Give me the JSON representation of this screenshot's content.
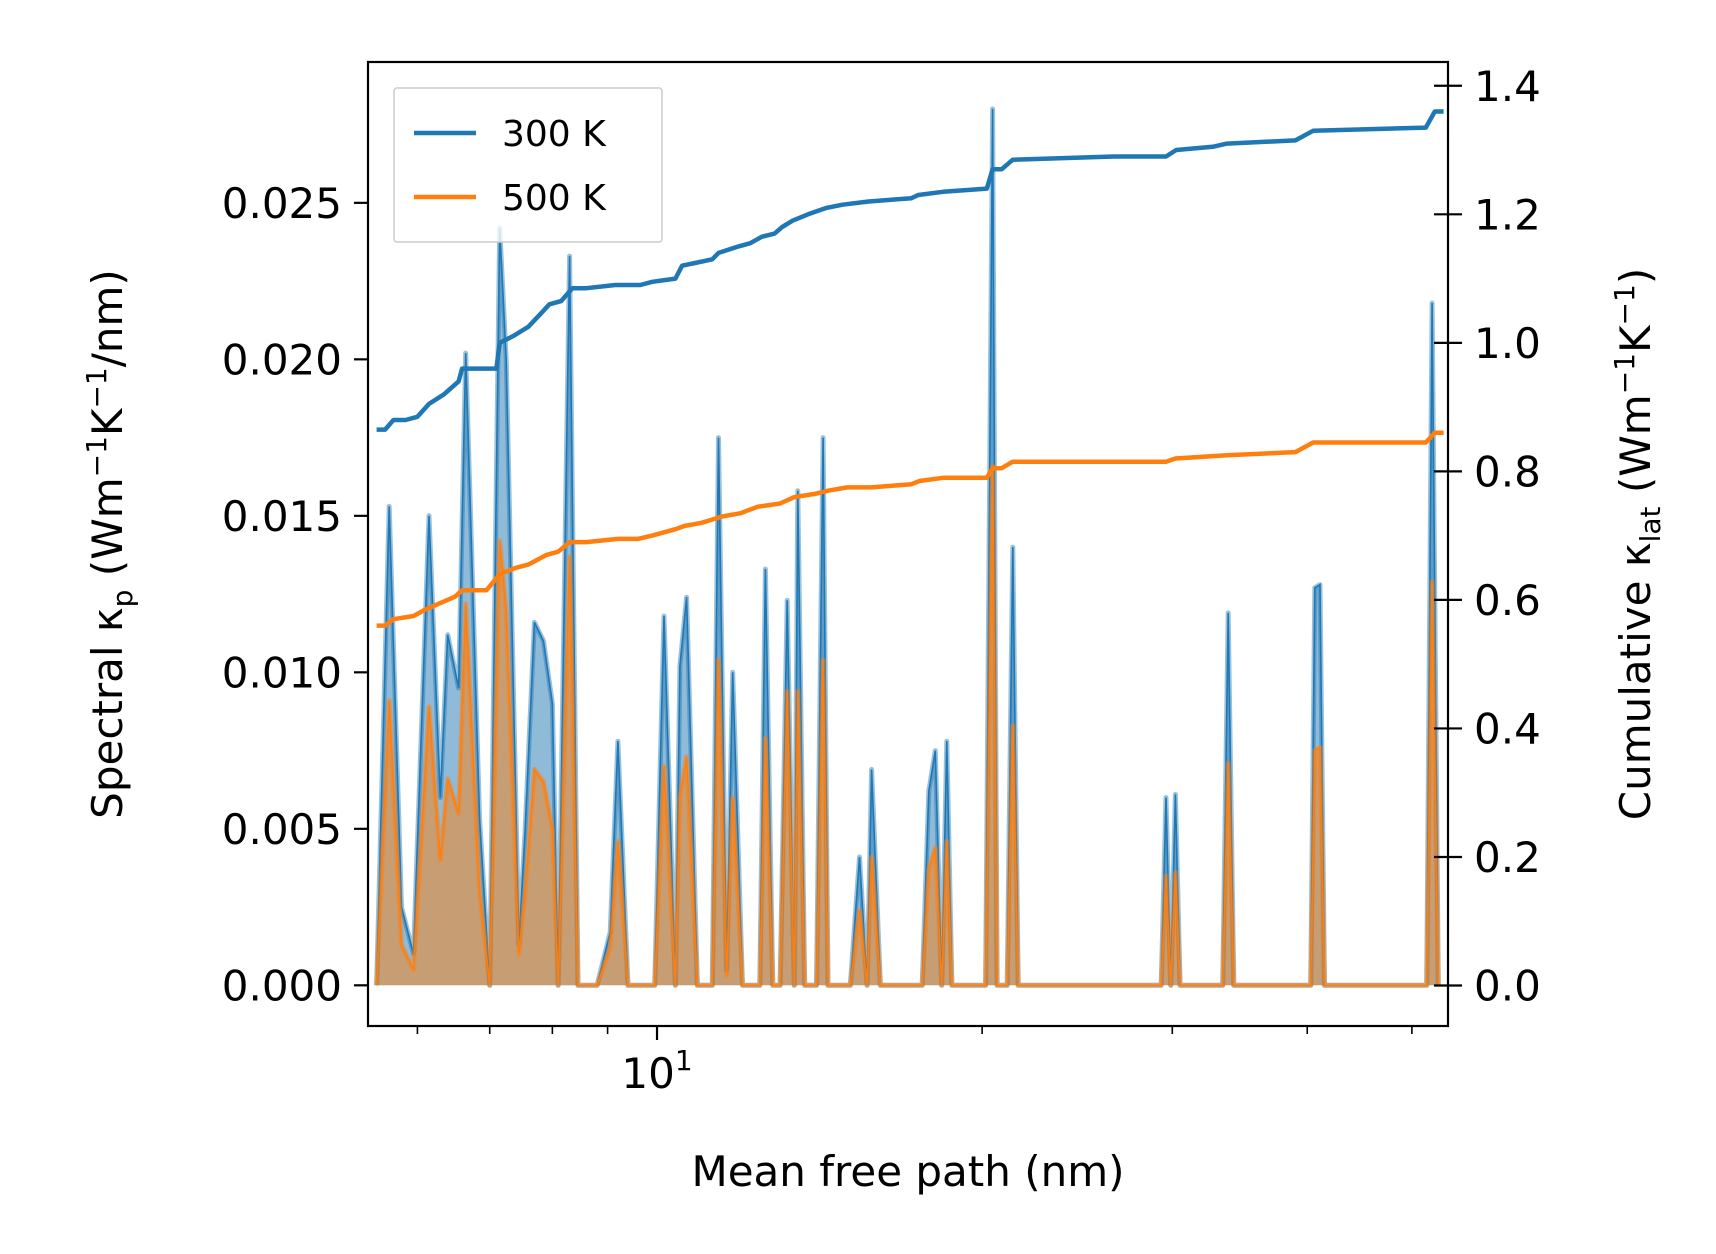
{
  "chart_data": {
    "type": "line",
    "title": "",
    "xlabel": "Mean free path (nm)",
    "xscale": "log",
    "xlim": [
      5.4,
      54
    ],
    "x_ticks": [
      {
        "value": 10,
        "base": "10",
        "exp": "1"
      }
    ],
    "ylabel_left": {
      "prefix": "Spectral κ",
      "sub": "p",
      "units_open": " (Wm",
      "sup1": "−1",
      "mid": "K",
      "sup2": "−1",
      "units_close": "/nm)"
    },
    "ylabel_right": {
      "prefix": "Cumulative κ",
      "sub": "lat",
      "units_open": " (Wm",
      "sup1": "−1",
      "mid": "K",
      "sup2": "−1",
      "units_close": ")"
    },
    "ylim_left": [
      -0.0013,
      0.0295
    ],
    "ylim_right": [
      -0.063,
      1.437
    ],
    "yticks_left": [
      0.0,
      0.005,
      0.01,
      0.015,
      0.02,
      0.025
    ],
    "yticks_left_labels": [
      "0.000",
      "0.005",
      "0.010",
      "0.015",
      "0.020",
      "0.025"
    ],
    "yticks_right": [
      0.0,
      0.2,
      0.4,
      0.6,
      0.8,
      1.0,
      1.2,
      1.4
    ],
    "yticks_right_labels": [
      "0.0",
      "0.2",
      "0.4",
      "0.6",
      "0.8",
      "1.0",
      "1.2",
      "1.4"
    ],
    "legend": {
      "position": "upper-left",
      "entries": [
        {
          "label": "300 K",
          "color": "#1f77b4"
        },
        {
          "label": "500 K",
          "color": "#ff7f0e"
        }
      ]
    },
    "series": [
      {
        "name": "300 K",
        "color": "#1f77b4",
        "spectral": [
          [
            5.5,
            0
          ],
          [
            5.65,
            0.0153
          ],
          [
            5.8,
            0.0025
          ],
          [
            5.95,
            0.001
          ],
          [
            6.15,
            0.015
          ],
          [
            6.3,
            0.006
          ],
          [
            6.4,
            0.0112
          ],
          [
            6.55,
            0.0095
          ],
          [
            6.65,
            0.0202
          ],
          [
            6.85,
            0.0053
          ],
          [
            7.0,
            0
          ],
          [
            7.15,
            0.0242
          ],
          [
            7.25,
            0.02
          ],
          [
            7.45,
            0.0013
          ],
          [
            7.55,
            0.005
          ],
          [
            7.7,
            0.0116
          ],
          [
            7.85,
            0.011
          ],
          [
            8.0,
            0.009
          ],
          [
            8.1,
            0
          ],
          [
            8.3,
            0.0233
          ],
          [
            8.45,
            0
          ],
          [
            8.8,
            0
          ],
          [
            9.05,
            0.0017
          ],
          [
            9.2,
            0.0078
          ],
          [
            9.4,
            0
          ],
          [
            9.95,
            0
          ],
          [
            10.15,
            0.0118
          ],
          [
            10.4,
            0
          ],
          [
            10.5,
            0.0102
          ],
          [
            10.65,
            0.0124
          ],
          [
            10.9,
            0
          ],
          [
            11.25,
            0
          ],
          [
            11.4,
            0.0175
          ],
          [
            11.6,
            0.0005
          ],
          [
            11.75,
            0.01
          ],
          [
            12.0,
            0
          ],
          [
            12.45,
            0
          ],
          [
            12.6,
            0.0133
          ],
          [
            12.8,
            0
          ],
          [
            13.0,
            0
          ],
          [
            13.2,
            0.0123
          ],
          [
            13.4,
            0
          ],
          [
            13.5,
            0.0158
          ],
          [
            13.7,
            0
          ],
          [
            14.05,
            0
          ],
          [
            14.25,
            0.0175
          ],
          [
            14.4,
            0
          ],
          [
            15.1,
            0
          ],
          [
            15.4,
            0.0041
          ],
          [
            15.65,
            0
          ],
          [
            15.8,
            0.0069
          ],
          [
            16.1,
            0
          ],
          [
            17.6,
            0
          ],
          [
            17.85,
            0.0062
          ],
          [
            18.1,
            0.0075
          ],
          [
            18.35,
            0
          ],
          [
            18.55,
            0.0078
          ],
          [
            18.75,
            0
          ],
          [
            20.15,
            0
          ],
          [
            20.45,
            0.028
          ],
          [
            20.65,
            0
          ],
          [
            21.1,
            0
          ],
          [
            21.35,
            0.014
          ],
          [
            21.6,
            0
          ],
          [
            29.3,
            0
          ],
          [
            29.6,
            0.006
          ],
          [
            29.9,
            0
          ],
          [
            30.2,
            0.0061
          ],
          [
            30.5,
            0
          ],
          [
            33.4,
            0
          ],
          [
            33.8,
            0.0119
          ],
          [
            34.2,
            0
          ],
          [
            40.3,
            0
          ],
          [
            40.65,
            0.0127
          ],
          [
            41.1,
            0.0128
          ],
          [
            41.5,
            0
          ],
          [
            51.6,
            0
          ],
          [
            52.2,
            0.0218
          ],
          [
            52.9,
            0
          ]
        ],
        "cumulative": [
          [
            5.5,
            0.865
          ],
          [
            5.6,
            0.865
          ],
          [
            5.7,
            0.88
          ],
          [
            5.85,
            0.88
          ],
          [
            6.0,
            0.885
          ],
          [
            6.15,
            0.905
          ],
          [
            6.35,
            0.92
          ],
          [
            6.55,
            0.94
          ],
          [
            6.6,
            0.96
          ],
          [
            6.95,
            0.96
          ],
          [
            7.1,
            0.96
          ],
          [
            7.15,
            1.0
          ],
          [
            7.35,
            1.01
          ],
          [
            7.6,
            1.025
          ],
          [
            7.8,
            1.045
          ],
          [
            7.95,
            1.06
          ],
          [
            8.15,
            1.065
          ],
          [
            8.35,
            1.085
          ],
          [
            8.6,
            1.085
          ],
          [
            9.15,
            1.09
          ],
          [
            9.65,
            1.09
          ],
          [
            9.9,
            1.095
          ],
          [
            10.4,
            1.1
          ],
          [
            10.55,
            1.12
          ],
          [
            10.9,
            1.125
          ],
          [
            11.25,
            1.13
          ],
          [
            11.4,
            1.14
          ],
          [
            11.9,
            1.15
          ],
          [
            12.2,
            1.155
          ],
          [
            12.5,
            1.165
          ],
          [
            12.85,
            1.17
          ],
          [
            13.05,
            1.18
          ],
          [
            13.35,
            1.19
          ],
          [
            13.8,
            1.2
          ],
          [
            14.35,
            1.21
          ],
          [
            14.85,
            1.215
          ],
          [
            15.7,
            1.22
          ],
          [
            17.2,
            1.225
          ],
          [
            17.45,
            1.23
          ],
          [
            18.4,
            1.235
          ],
          [
            20.2,
            1.24
          ],
          [
            20.45,
            1.27
          ],
          [
            20.85,
            1.27
          ],
          [
            21.35,
            1.285
          ],
          [
            26.5,
            1.29
          ],
          [
            29.6,
            1.29
          ],
          [
            30.25,
            1.3
          ],
          [
            32.7,
            1.305
          ],
          [
            33.7,
            1.31
          ],
          [
            39.0,
            1.315
          ],
          [
            40.5,
            1.33
          ],
          [
            51.5,
            1.335
          ],
          [
            52.5,
            1.36
          ],
          [
            53.5,
            1.36
          ]
        ]
      },
      {
        "name": "500 K",
        "color": "#ff7f0e",
        "spectral": [
          [
            5.5,
            0
          ],
          [
            5.65,
            0.0091
          ],
          [
            5.8,
            0.0013
          ],
          [
            5.95,
            0.0005
          ],
          [
            6.15,
            0.0089
          ],
          [
            6.3,
            0.004
          ],
          [
            6.4,
            0.0066
          ],
          [
            6.55,
            0.0055
          ],
          [
            6.65,
            0.0122
          ],
          [
            6.85,
            0.003
          ],
          [
            7.0,
            0
          ],
          [
            7.15,
            0.0142
          ],
          [
            7.25,
            0.012
          ],
          [
            7.45,
            0.001
          ],
          [
            7.55,
            0.003
          ],
          [
            7.7,
            0.0069
          ],
          [
            7.85,
            0.0065
          ],
          [
            8.0,
            0.005
          ],
          [
            8.1,
            0
          ],
          [
            8.3,
            0.0137
          ],
          [
            8.45,
            0
          ],
          [
            8.8,
            0
          ],
          [
            9.05,
            0.0012
          ],
          [
            9.2,
            0.0046
          ],
          [
            9.4,
            0
          ],
          [
            9.95,
            0
          ],
          [
            10.15,
            0.007
          ],
          [
            10.4,
            0
          ],
          [
            10.5,
            0.006
          ],
          [
            10.65,
            0.0073
          ],
          [
            10.9,
            0
          ],
          [
            11.25,
            0
          ],
          [
            11.4,
            0.0104
          ],
          [
            11.6,
            0.0003
          ],
          [
            11.75,
            0.006
          ],
          [
            12.0,
            0
          ],
          [
            12.45,
            0
          ],
          [
            12.6,
            0.0079
          ],
          [
            12.8,
            0
          ],
          [
            13.0,
            0
          ],
          [
            13.2,
            0.0094
          ],
          [
            13.4,
            0
          ],
          [
            13.5,
            0.0094
          ],
          [
            13.7,
            0
          ],
          [
            14.05,
            0
          ],
          [
            14.25,
            0.0104
          ],
          [
            14.4,
            0
          ],
          [
            15.1,
            0
          ],
          [
            15.4,
            0.0024
          ],
          [
            15.65,
            0
          ],
          [
            15.8,
            0.0041
          ],
          [
            16.1,
            0
          ],
          [
            17.6,
            0
          ],
          [
            17.85,
            0.0037
          ],
          [
            18.1,
            0.0044
          ],
          [
            18.35,
            0
          ],
          [
            18.55,
            0.0046
          ],
          [
            18.75,
            0
          ],
          [
            20.15,
            0
          ],
          [
            20.45,
            0.0166
          ],
          [
            20.65,
            0
          ],
          [
            21.1,
            0
          ],
          [
            21.35,
            0.0083
          ],
          [
            21.6,
            0
          ],
          [
            29.3,
            0
          ],
          [
            29.6,
            0.0035
          ],
          [
            29.9,
            0
          ],
          [
            30.2,
            0.0036
          ],
          [
            30.5,
            0
          ],
          [
            33.4,
            0
          ],
          [
            33.8,
            0.0071
          ],
          [
            34.2,
            0
          ],
          [
            40.3,
            0
          ],
          [
            40.65,
            0.0075
          ],
          [
            41.1,
            0.0076
          ],
          [
            41.5,
            0
          ],
          [
            51.6,
            0
          ],
          [
            52.2,
            0.0129
          ],
          [
            52.9,
            0
          ]
        ],
        "cumulative": [
          [
            5.5,
            0.56
          ],
          [
            5.6,
            0.56
          ],
          [
            5.7,
            0.57
          ],
          [
            5.95,
            0.575
          ],
          [
            6.1,
            0.585
          ],
          [
            6.3,
            0.595
          ],
          [
            6.5,
            0.605
          ],
          [
            6.6,
            0.615
          ],
          [
            6.95,
            0.615
          ],
          [
            7.15,
            0.64
          ],
          [
            7.4,
            0.65
          ],
          [
            7.6,
            0.655
          ],
          [
            7.9,
            0.67
          ],
          [
            8.1,
            0.675
          ],
          [
            8.3,
            0.69
          ],
          [
            8.6,
            0.69
          ],
          [
            9.2,
            0.695
          ],
          [
            9.6,
            0.695
          ],
          [
            9.9,
            0.7
          ],
          [
            10.4,
            0.71
          ],
          [
            10.6,
            0.715
          ],
          [
            11.0,
            0.72
          ],
          [
            11.5,
            0.73
          ],
          [
            11.95,
            0.735
          ],
          [
            12.4,
            0.745
          ],
          [
            13.0,
            0.75
          ],
          [
            13.4,
            0.76
          ],
          [
            14.0,
            0.765
          ],
          [
            14.4,
            0.77
          ],
          [
            15.0,
            0.775
          ],
          [
            15.8,
            0.775
          ],
          [
            17.2,
            0.78
          ],
          [
            17.5,
            0.785
          ],
          [
            18.4,
            0.79
          ],
          [
            20.2,
            0.79
          ],
          [
            20.45,
            0.805
          ],
          [
            20.85,
            0.805
          ],
          [
            21.35,
            0.815
          ],
          [
            26.5,
            0.815
          ],
          [
            29.6,
            0.815
          ],
          [
            30.2,
            0.82
          ],
          [
            33.7,
            0.825
          ],
          [
            39.0,
            0.83
          ],
          [
            40.5,
            0.845
          ],
          [
            51.5,
            0.845
          ],
          [
            52.5,
            0.86
          ],
          [
            53.5,
            0.86
          ]
        ]
      }
    ]
  }
}
